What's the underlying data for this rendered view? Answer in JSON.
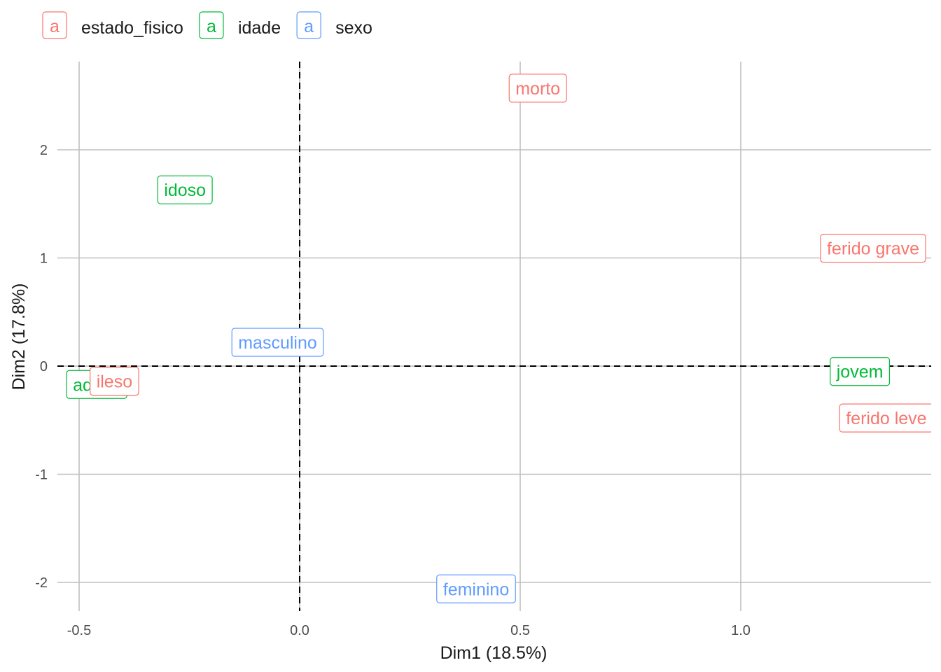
{
  "chart_data": {
    "type": "scatter",
    "xlabel": "Dim1 (18.5%)",
    "ylabel": "Dim2 (17.8%)",
    "xlim": [
      -0.55,
      1.43
    ],
    "ylim": [
      -2.28,
      2.8
    ],
    "x_ticks": [
      -0.5,
      0.0,
      0.5,
      1.0
    ],
    "y_ticks": [
      -2,
      -1,
      0,
      1,
      2
    ],
    "x_tick_labels": [
      "-0.5",
      "0.0",
      "0.5",
      "1.0"
    ],
    "y_tick_labels": [
      "-2",
      "-1",
      "0",
      "1",
      "2"
    ],
    "reference_lines": {
      "x": 0,
      "y": 0,
      "style": "dashed"
    },
    "grid": true,
    "legend_position": "top-left",
    "legend": [
      {
        "key": "estado_fisico",
        "label": "estado_fisico",
        "swatch_text": "a",
        "color": "#F8766D"
      },
      {
        "key": "idade",
        "label": "idade",
        "swatch_text": "a",
        "color": "#00BA38"
      },
      {
        "key": "sexo",
        "label": "sexo",
        "swatch_text": "a",
        "color": "#619CFF"
      }
    ],
    "points": [
      {
        "label": "morto",
        "group": "estado_fisico",
        "x": 0.54,
        "y": 2.57
      },
      {
        "label": "ferido grave",
        "group": "estado_fisico",
        "x": 1.3,
        "y": 1.09
      },
      {
        "label": "ferido leve",
        "group": "estado_fisico",
        "x": 1.33,
        "y": -0.48
      },
      {
        "label": "idoso",
        "group": "idade",
        "x": -0.26,
        "y": 1.63
      },
      {
        "label": "adulto",
        "group": "idade",
        "x": -0.46,
        "y": -0.17
      },
      {
        "label": "ileso",
        "group": "estado_fisico",
        "x": -0.42,
        "y": -0.14
      },
      {
        "label": "masculino",
        "group": "sexo",
        "x": -0.05,
        "y": 0.22
      },
      {
        "label": "jovem",
        "group": "idade",
        "x": 1.27,
        "y": -0.05
      },
      {
        "label": "feminino",
        "group": "sexo",
        "x": 0.4,
        "y": -2.06
      }
    ]
  }
}
